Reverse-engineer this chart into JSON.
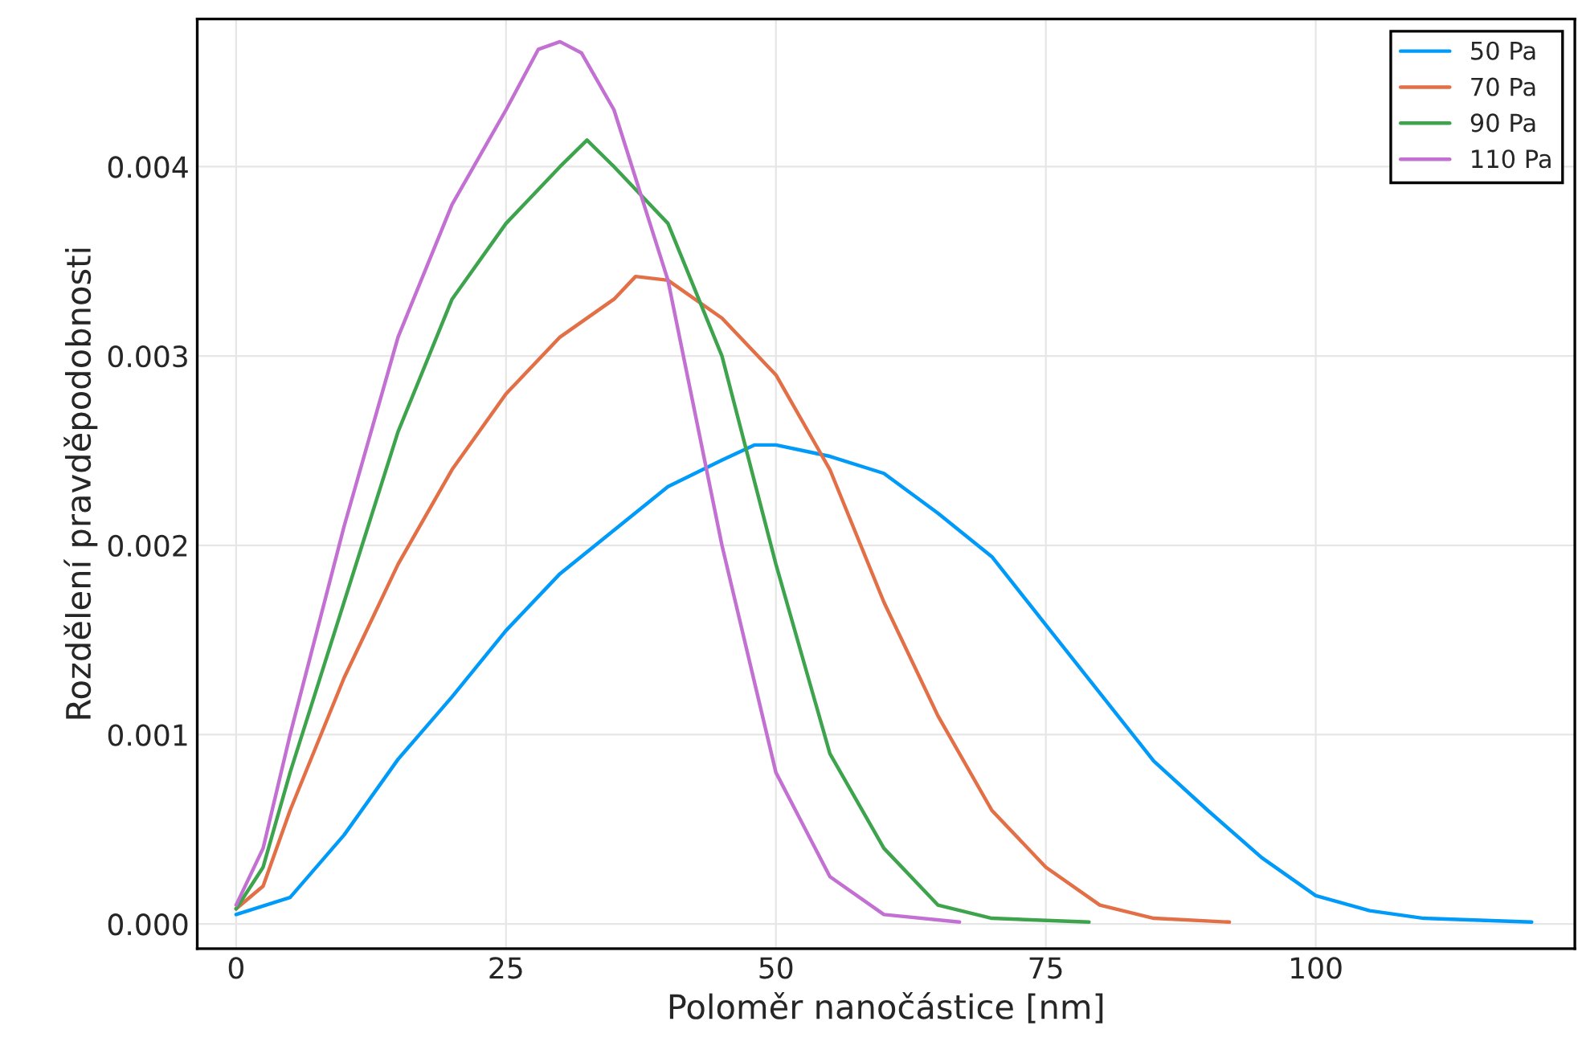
{
  "chart_data": {
    "type": "line",
    "xlabel": "Poloměr nanočástice [nm]",
    "ylabel": "Rozdělení pravděpodobnosti",
    "xlim": [
      -3.6,
      124
    ],
    "xticks": [
      0,
      25,
      50,
      75,
      100
    ],
    "ylim": [
      -0.00013,
      0.00478
    ],
    "yticks": [
      {
        "value": 0,
        "label": "0.000"
      },
      {
        "value": 0.001,
        "label": "0.001"
      },
      {
        "value": 0.002,
        "label": "0.002"
      },
      {
        "value": 0.003,
        "label": "0.003"
      },
      {
        "value": 0.004,
        "label": "0.004"
      }
    ],
    "grid": true,
    "legend": "top right",
    "marker": "none",
    "line_style": "solid",
    "series": [
      {
        "name": "50 Pa",
        "color": "#009af9",
        "x": [
          0,
          5,
          10,
          15,
          20,
          25,
          30,
          35,
          40,
          45,
          48,
          50,
          55,
          60,
          65,
          70,
          75,
          80,
          85,
          90,
          95,
          100,
          105,
          110,
          120
        ],
        "values": [
          5e-05,
          0.00014,
          0.00047,
          0.00087,
          0.0012,
          0.00155,
          0.00185,
          0.00208,
          0.00231,
          0.00245,
          0.00253,
          0.00253,
          0.00247,
          0.00238,
          0.00217,
          0.00194,
          0.00158,
          0.00122,
          0.00086,
          0.0006,
          0.00035,
          0.00015,
          7e-05,
          3e-05,
          1e-05
        ]
      },
      {
        "name": "70 Pa",
        "color": "#e26f46",
        "x": [
          0,
          2.5,
          5,
          10,
          15,
          20,
          25,
          30,
          35,
          37,
          40,
          45,
          50,
          55,
          60,
          65,
          70,
          75,
          80,
          85,
          92
        ],
        "values": [
          8e-05,
          0.0002,
          0.0006,
          0.0013,
          0.0019,
          0.0024,
          0.0028,
          0.0031,
          0.0033,
          0.00342,
          0.0034,
          0.0032,
          0.0029,
          0.0024,
          0.0017,
          0.0011,
          0.0006,
          0.0003,
          0.0001,
          3e-05,
          1e-05
        ]
      },
      {
        "name": "90 Pa",
        "color": "#3da44d",
        "x": [
          0,
          2.5,
          5,
          10,
          15,
          20,
          25,
          30,
          32.5,
          35,
          40,
          45,
          50,
          55,
          60,
          65,
          70,
          79
        ],
        "values": [
          8e-05,
          0.0003,
          0.0008,
          0.0017,
          0.0026,
          0.0033,
          0.0037,
          0.004,
          0.00414,
          0.004,
          0.0037,
          0.003,
          0.0019,
          0.0009,
          0.0004,
          0.0001,
          3e-05,
          1e-05
        ]
      },
      {
        "name": "110 Pa",
        "color": "#c271d2",
        "x": [
          0,
          2.5,
          5,
          10,
          15,
          20,
          25,
          28,
          30,
          32,
          35,
          40,
          45,
          50,
          55,
          60,
          67
        ],
        "values": [
          0.0001,
          0.0004,
          0.001,
          0.0021,
          0.0031,
          0.0038,
          0.0043,
          0.00462,
          0.00466,
          0.0046,
          0.0043,
          0.0034,
          0.002,
          0.0008,
          0.00025,
          5e-05,
          1e-05
        ]
      }
    ]
  }
}
